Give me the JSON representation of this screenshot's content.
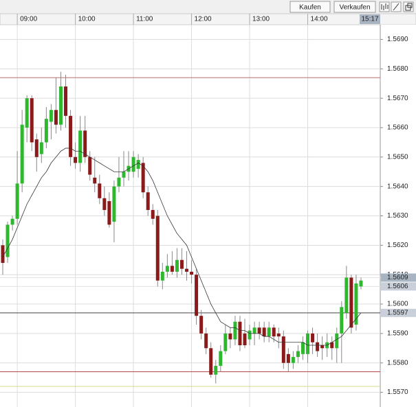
{
  "toolbar": {
    "buttons": [
      "Kaufen",
      "Verkaufen"
    ]
  },
  "chart_data": {
    "type": "candlestick",
    "current_time": "15:17",
    "categories": [
      null,
      null,
      null,
      "09:00",
      null,
      null,
      null,
      null,
      null,
      null,
      null,
      null,
      null,
      null,
      null,
      "10:00",
      null,
      null,
      null,
      null,
      null,
      null,
      null,
      null,
      null,
      null,
      null,
      "11:00",
      null,
      null,
      null,
      null,
      null,
      null,
      null,
      null,
      null,
      null,
      null,
      "12:00",
      null,
      null,
      null,
      null,
      null,
      null,
      null,
      null,
      null,
      null,
      null,
      "13:00",
      null,
      null,
      null,
      null,
      null,
      null,
      null,
      null,
      null,
      null,
      null,
      "14:00",
      null,
      null,
      null,
      null,
      null,
      null,
      null,
      null,
      null,
      null,
      null
    ],
    "open": [
      1.562,
      1.5616,
      1.5627,
      1.5629,
      1.5641,
      1.566,
      1.567,
      1.5656,
      1.5651,
      1.5655,
      1.5662,
      1.5666,
      1.5661,
      1.5674,
      1.5664,
      1.565,
      1.5648,
      1.5659,
      1.565,
      1.5643,
      1.5641,
      1.5636,
      1.5635,
      1.5628,
      1.564,
      1.5643,
      1.5645,
      1.5645,
      1.5646,
      1.5648,
      1.5638,
      1.5632,
      1.563,
      1.5608,
      1.5611,
      1.5613,
      1.5611,
      1.5615,
      1.5612,
      1.5611,
      1.561,
      1.5596,
      1.559,
      1.5585,
      1.5576,
      1.5579,
      1.5584,
      1.559,
      1.5588,
      1.5594,
      1.559,
      1.5588,
      1.559,
      1.5592,
      1.5592,
      1.5589,
      1.5592,
      1.559,
      1.5589,
      1.5583,
      1.558,
      1.5582,
      1.5583,
      1.5583,
      1.559,
      1.5587,
      1.5586,
      1.5585,
      1.5587,
      1.5585,
      1.559,
      1.5597,
      1.5609,
      1.5593,
      1.5606
    ],
    "high": [
      1.5622,
      1.5628,
      1.563,
      1.5652,
      1.5666,
      1.5671,
      1.5671,
      1.5658,
      1.566,
      1.5667,
      1.5668,
      1.5677,
      1.5679,
      1.5678,
      1.5666,
      1.5655,
      1.5664,
      1.5664,
      1.5652,
      1.565,
      1.5644,
      1.564,
      1.5638,
      1.5642,
      1.565,
      1.5652,
      1.5652,
      1.5652,
      1.5651,
      1.565,
      1.564,
      1.5634,
      1.5632,
      1.5614,
      1.5617,
      1.5618,
      1.5619,
      1.5619,
      1.5618,
      1.5615,
      1.5612,
      1.5598,
      1.5592,
      1.5587,
      1.5581,
      1.5586,
      1.5593,
      1.5592,
      1.5596,
      1.5596,
      1.5595,
      1.5593,
      1.5594,
      1.5594,
      1.5594,
      1.5594,
      1.5593,
      1.5592,
      1.5591,
      1.5585,
      1.5584,
      1.5586,
      1.5589,
      1.5591,
      1.5592,
      1.559,
      1.5589,
      1.559,
      1.5589,
      1.5592,
      1.5601,
      1.5613,
      1.561,
      1.561,
      1.5609
    ],
    "low": [
      1.561,
      1.5614,
      1.5625,
      1.5627,
      1.5638,
      1.5655,
      1.5652,
      1.5645,
      1.5648,
      1.5653,
      1.5656,
      1.5658,
      1.5659,
      1.566,
      1.5647,
      1.5646,
      1.5645,
      1.5648,
      1.5642,
      1.5638,
      1.5634,
      1.563,
      1.5626,
      1.5621,
      1.5638,
      1.564,
      1.5642,
      1.5643,
      1.5643,
      1.5636,
      1.563,
      1.5627,
      1.5606,
      1.5605,
      1.5609,
      1.561,
      1.5609,
      1.561,
      1.5608,
      1.5607,
      1.5593,
      1.5588,
      1.5583,
      1.5575,
      1.5573,
      1.5577,
      1.5583,
      1.5585,
      1.5586,
      1.5584,
      1.5585,
      1.5586,
      1.5586,
      1.5588,
      1.5587,
      1.5587,
      1.5587,
      1.5585,
      1.5578,
      1.5577,
      1.5578,
      1.558,
      1.5581,
      1.558,
      1.5583,
      1.5582,
      1.5581,
      1.5582,
      1.5581,
      1.558,
      1.558,
      1.5595,
      1.559,
      1.5591,
      1.5605
    ],
    "close": [
      1.5614,
      1.5627,
      1.5629,
      1.5641,
      1.5661,
      1.567,
      1.5655,
      1.565,
      1.5655,
      1.5663,
      1.5666,
      1.5661,
      1.5674,
      1.5664,
      1.565,
      1.5648,
      1.5659,
      1.565,
      1.5644,
      1.5641,
      1.5636,
      1.5632,
      1.5627,
      1.564,
      1.5643,
      1.5645,
      1.5647,
      1.565,
      1.5649,
      1.5638,
      1.5632,
      1.5629,
      1.5608,
      1.5611,
      1.5613,
      1.5611,
      1.5615,
      1.5612,
      1.5611,
      1.561,
      1.5596,
      1.559,
      1.5585,
      1.5576,
      1.5579,
      1.5584,
      1.559,
      1.5588,
      1.5594,
      1.5586,
      1.5586,
      1.5591,
      1.5592,
      1.559,
      1.5589,
      1.5592,
      1.5589,
      1.5589,
      1.558,
      1.558,
      1.5582,
      1.5584,
      1.5587,
      1.559,
      1.5587,
      1.5584,
      1.5585,
      1.5587,
      1.5585,
      1.559,
      1.5599,
      1.5609,
      1.5592,
      1.5607,
      1.5608
    ],
    "up_color": "#2db82d",
    "down_color": "#8b1a1a",
    "moving_average": {
      "color": "#333333",
      "values": [
        1.5616,
        1.5619,
        1.5622,
        1.5626,
        1.563,
        1.5634,
        1.5637,
        1.564,
        1.5643,
        1.5645,
        1.5648,
        1.565,
        1.5652,
        1.5653,
        1.5653,
        1.5652,
        1.5652,
        1.5651,
        1.565,
        1.5649,
        1.5648,
        1.5647,
        1.5646,
        1.5645,
        1.5645,
        1.5645,
        1.5646,
        1.5647,
        1.5648,
        1.5647,
        1.5645,
        1.5642,
        1.5638,
        1.5634,
        1.563,
        1.5627,
        1.5624,
        1.5622,
        1.562,
        1.5616,
        1.5612,
        1.5608,
        1.5604,
        1.56,
        1.5597,
        1.5594,
        1.5593,
        1.5592,
        1.5592,
        1.5591,
        1.5591,
        1.559,
        1.559,
        1.559,
        1.5589,
        1.5589,
        1.5588,
        1.5587,
        1.5587,
        1.5587,
        1.5587,
        1.5587,
        1.5587,
        1.5586,
        1.5586,
        1.5586,
        1.5586,
        1.5586,
        1.5587,
        1.5588,
        1.5589,
        1.5591,
        1.5593,
        1.5595,
        1.5597
      ]
    },
    "ylim": [
      1.5565,
      1.5695
    ],
    "yticks": [
      {
        "value": 1.557,
        "label": "1.5570"
      },
      {
        "value": 1.558,
        "label": "1.5580"
      },
      {
        "value": 1.559,
        "label": "1.5590"
      },
      {
        "value": 1.56,
        "label": "1.5600"
      },
      {
        "value": 1.561,
        "label": "1.5610"
      },
      {
        "value": 1.562,
        "label": "1.5620"
      },
      {
        "value": 1.563,
        "label": "1.5630"
      },
      {
        "value": 1.564,
        "label": "1.5640"
      },
      {
        "value": 1.565,
        "label": "1.5650"
      },
      {
        "value": 1.566,
        "label": "1.5660"
      },
      {
        "value": 1.567,
        "label": "1.5670"
      },
      {
        "value": 1.568,
        "label": "1.5680"
      },
      {
        "value": 1.569,
        "label": "1.5690"
      }
    ],
    "price_labels": [
      {
        "value": 1.5609,
        "label": "1.5609",
        "color": "#a9b4c2",
        "line": "#e2e2e2"
      },
      {
        "value": 1.5606,
        "label": "1.5606",
        "color": "#c9d0da",
        "line": "#e2e2e2"
      },
      {
        "value": 1.5597,
        "label": "1.5597",
        "color": "#c9d0da",
        "line": "#444444"
      }
    ],
    "levels": [
      {
        "value": 1.5677,
        "color": "#b86a6a"
      },
      {
        "value": 1.5577,
        "color": "#b04040"
      },
      {
        "value": 1.5572,
        "color": "#d8d890"
      }
    ],
    "grid": true
  }
}
